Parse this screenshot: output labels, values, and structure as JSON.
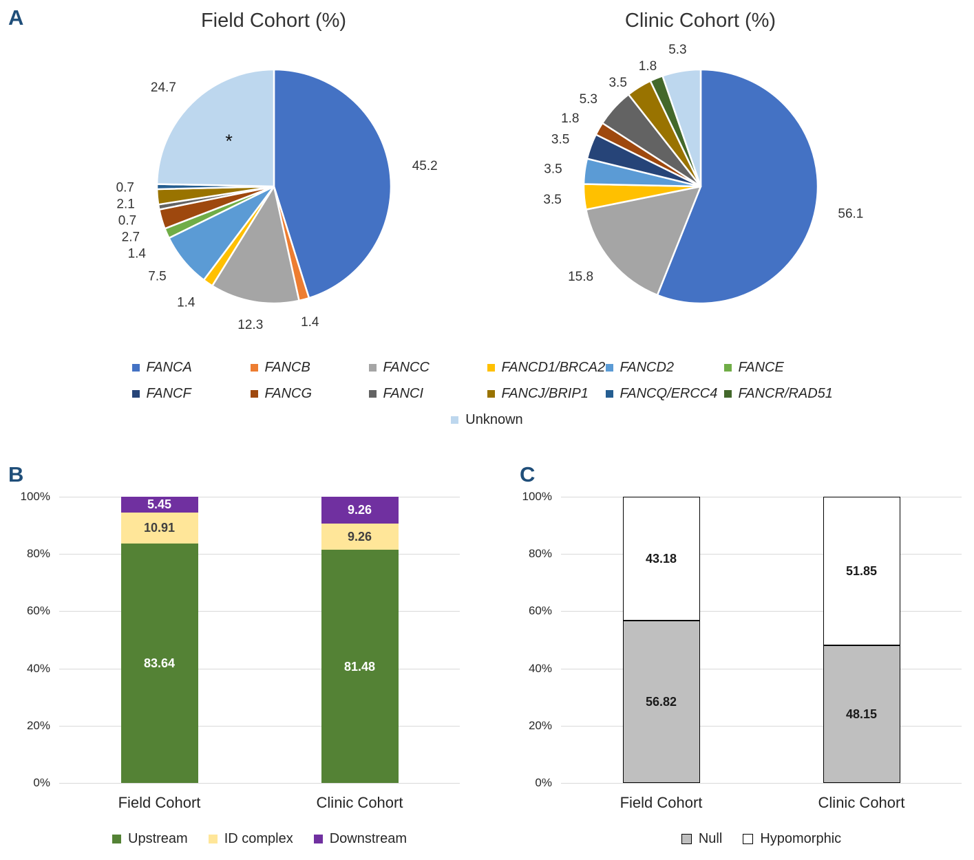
{
  "panel_letters": {
    "a": "A",
    "b": "B",
    "c": "C"
  },
  "colors": {
    "FANCA": "#4472C4",
    "FANCB": "#ED7D31",
    "FANCC": "#A5A5A5",
    "FANCD1/BRCA2": "#FFC000",
    "FANCD2": "#5B9BD5",
    "FANCE": "#70AD47",
    "FANCF": "#264478",
    "FANCG": "#9E480E",
    "FANCI": "#636363",
    "FANCJ/BRIP1": "#997300",
    "FANCQ/ERCC4": "#255E91",
    "FANCR/RAD51": "#43682B",
    "Unknown": "#BDD7EE",
    "Upstream": "#548235",
    "ID complex": "#FFE699",
    "Downstream": "#7030A0",
    "Null": "#BFBFBF",
    "Hypomorphic": "#FFFFFF"
  },
  "gene_legend": {
    "rows": [
      [
        "FANCA",
        "FANCB",
        "FANCC",
        "FANCD1/BRCA2",
        "FANCD2",
        "FANCE"
      ],
      [
        "FANCF",
        "FANCG",
        "FANCI",
        "FANCJ/BRIP1",
        "FANCQ/ERCC4",
        "FANCR/RAD51"
      ],
      [
        "Unknown"
      ]
    ],
    "non_italic": [
      "Unknown"
    ]
  },
  "chart_data": [
    {
      "id": "field-cohort-pie",
      "type": "pie",
      "title": "Field Cohort (%)",
      "labels": [
        "FANCA",
        "FANCB",
        "FANCC",
        "FANCD1/BRCA2",
        "FANCD2",
        "FANCE",
        "FANCG",
        "FANCI",
        "FANCJ/BRIP1",
        "FANCQ/ERCC4",
        "Unknown"
      ],
      "values": [
        45.2,
        1.4,
        12.3,
        1.4,
        7.5,
        1.4,
        2.7,
        0.7,
        2.1,
        0.7,
        24.7
      ],
      "annotations": [
        {
          "text": "*",
          "slice": "Unknown"
        }
      ],
      "legend_position": "bottom-shared",
      "start_angle": 0,
      "direction": "clockwise"
    },
    {
      "id": "clinic-cohort-pie",
      "type": "pie",
      "title": "Clinic Cohort (%)",
      "labels": [
        "FANCA",
        "FANCC",
        "FANCD1/BRCA2",
        "FANCD2",
        "FANCF",
        "FANCG",
        "FANCI",
        "FANCJ/BRIP1",
        "FANCR/RAD51",
        "Unknown"
      ],
      "values": [
        56.1,
        15.8,
        3.5,
        3.5,
        3.5,
        1.8,
        5.3,
        3.5,
        1.8,
        5.3
      ],
      "annotations": [],
      "legend_position": "bottom-shared",
      "start_angle": 0,
      "direction": "clockwise"
    },
    {
      "id": "mutation-location-bars",
      "type": "bar",
      "stacked": true,
      "categories": [
        "Field Cohort",
        "Clinic Cohort"
      ],
      "series": [
        {
          "name": "Upstream",
          "values": [
            83.64,
            81.48
          ],
          "label_color": "#FFFFFF"
        },
        {
          "name": "ID complex",
          "values": [
            10.91,
            9.26
          ],
          "label_color": "#404040"
        },
        {
          "name": "Downstream",
          "values": [
            5.45,
            9.26
          ],
          "label_color": "#FFFFFF"
        }
      ],
      "y_ticks": [
        "0%",
        "20%",
        "40%",
        "60%",
        "80%",
        "100%"
      ],
      "ylim": [
        0,
        100
      ],
      "grid": true,
      "legend_position": "bottom"
    },
    {
      "id": "variant-type-bars",
      "type": "bar",
      "stacked": true,
      "categories": [
        "Field Cohort",
        "Clinic Cohort"
      ],
      "series": [
        {
          "name": "Null",
          "values": [
            56.82,
            48.15
          ],
          "label_color": "#1a1a1a",
          "border": "#000000"
        },
        {
          "name": "Hypomorphic",
          "values": [
            43.18,
            51.85
          ],
          "label_color": "#1a1a1a",
          "border": "#000000"
        }
      ],
      "y_ticks": [
        "0%",
        "20%",
        "40%",
        "60%",
        "80%",
        "100%"
      ],
      "ylim": [
        0,
        100
      ],
      "grid": true,
      "legend_position": "bottom"
    }
  ]
}
